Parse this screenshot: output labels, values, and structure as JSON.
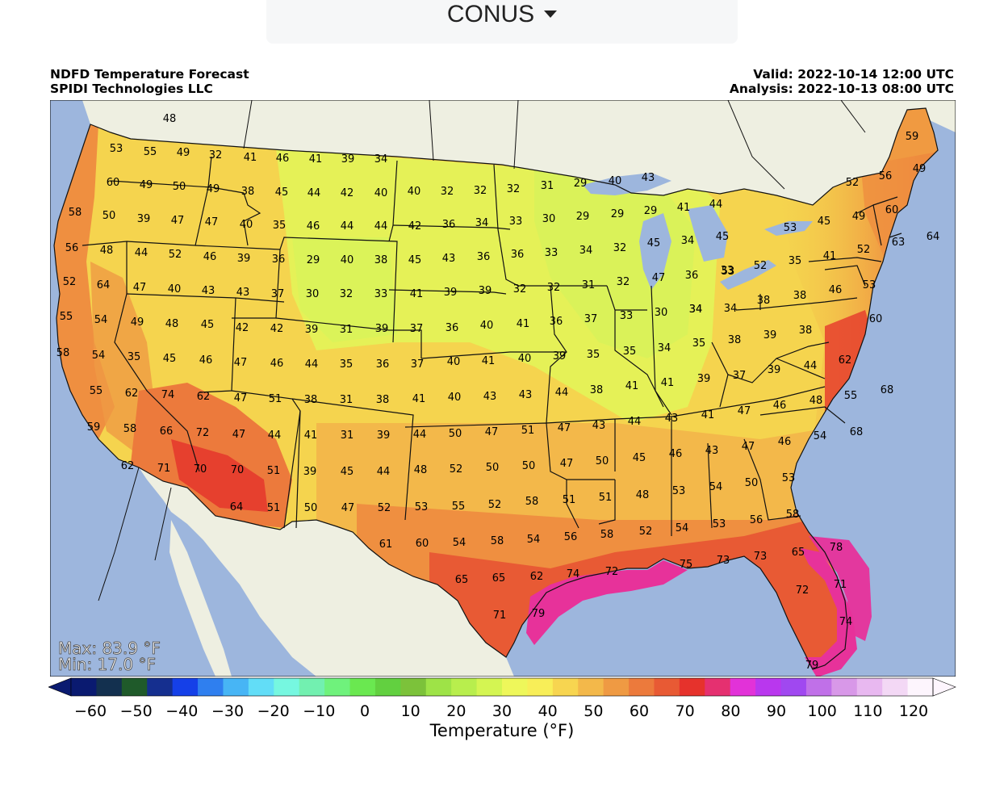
{
  "region_selector": {
    "label": "CONUS"
  },
  "header": {
    "title_line1": "NDFD Temperature Forecast",
    "title_line2": "SPIDI Technologies LLC",
    "valid": "Valid: 2022-10-14 12:00 UTC",
    "analysis": "Analysis: 2022-10-13 08:00 UTC"
  },
  "stats": {
    "max": "Max: 83.9 °F",
    "min": "Min: 17.0 °F"
  },
  "colorbar": {
    "label": "Temperature (°F)",
    "ticks": [
      "−60",
      "−50",
      "−40",
      "−30",
      "−20",
      "−10",
      "0",
      "10",
      "20",
      "30",
      "40",
      "50",
      "60",
      "70",
      "80",
      "90",
      "100",
      "110",
      "120"
    ],
    "colors": [
      "#0a1a70",
      "#13304f",
      "#1f5a2a",
      "#152f8f",
      "#1540e8",
      "#2f7fef",
      "#47b5f5",
      "#62ddf7",
      "#76f7e0",
      "#72f0b0",
      "#6ff27c",
      "#6ae850",
      "#62d040",
      "#7cc23a",
      "#9ee347",
      "#b8ee4d",
      "#d4f552",
      "#eef75a",
      "#f8ee58",
      "#f7d550",
      "#f3b84a",
      "#ef9a43",
      "#ec7a3c",
      "#e85a34",
      "#e6322c",
      "#e53070",
      "#e232d8",
      "#b937ee",
      "#a048f0",
      "#c070e8",
      "#d898e8",
      "#e8b8f0",
      "#f3d8f5",
      "#fdf5fd"
    ]
  },
  "legend_colors": {
    "ocean": "#9db6dd",
    "land_outside": "#eeefe1",
    "lakes": "#9db6dd",
    "cool": "#dff55a",
    "mild": "#f4cf4c",
    "warm": "#ef8f40",
    "hot": "#e6402e",
    "very_hot": "#e7329a"
  },
  "labels": [
    [
      "48",
      148,
      22
    ],
    [
      "53",
      82,
      59
    ],
    [
      "55",
      124,
      63
    ],
    [
      "49",
      165,
      64
    ],
    [
      "32",
      205,
      67
    ],
    [
      "41",
      248,
      70
    ],
    [
      "46",
      288,
      71
    ],
    [
      "41",
      329,
      72
    ],
    [
      "39",
      369,
      72
    ],
    [
      "34",
      410,
      72
    ],
    [
      "60",
      78,
      101
    ],
    [
      "49",
      119,
      104
    ],
    [
      "50",
      160,
      106
    ],
    [
      "49",
      202,
      109
    ],
    [
      "38",
      245,
      112
    ],
    [
      "45",
      287,
      113
    ],
    [
      "44",
      327,
      114
    ],
    [
      "42",
      368,
      114
    ],
    [
      "40",
      410,
      114
    ],
    [
      "40",
      451,
      112
    ],
    [
      "32",
      492,
      112
    ],
    [
      "32",
      533,
      111
    ],
    [
      "32",
      574,
      109
    ],
    [
      "31",
      616,
      105
    ],
    [
      "29",
      657,
      102
    ],
    [
      "40",
      700,
      99
    ],
    [
      "43",
      741,
      95
    ],
    [
      "58",
      31,
      138
    ],
    [
      "50",
      73,
      142
    ],
    [
      "39",
      116,
      146
    ],
    [
      "47",
      158,
      148
    ],
    [
      "47",
      200,
      150
    ],
    [
      "40",
      243,
      153
    ],
    [
      "35",
      284,
      154
    ],
    [
      "46",
      326,
      155
    ],
    [
      "44",
      368,
      155
    ],
    [
      "44",
      410,
      155
    ],
    [
      "42",
      452,
      155
    ],
    [
      "36",
      494,
      153
    ],
    [
      "34",
      535,
      151
    ],
    [
      "33",
      577,
      149
    ],
    [
      "30",
      618,
      146
    ],
    [
      "29",
      660,
      143
    ],
    [
      "29",
      703,
      140
    ],
    [
      "29",
      744,
      136
    ],
    [
      "41",
      785,
      132
    ],
    [
      "44",
      825,
      128
    ],
    [
      "53",
      917,
      157
    ],
    [
      "45",
      959,
      149
    ],
    [
      "49",
      1002,
      143
    ],
    [
      "60",
      1043,
      135
    ],
    [
      "56",
      1035,
      93
    ],
    [
      "52",
      994,
      101
    ],
    [
      "59",
      1068,
      44
    ],
    [
      "49",
      1077,
      84
    ],
    [
      "56",
      27,
      182
    ],
    [
      "48",
      70,
      185
    ],
    [
      "44",
      113,
      188
    ],
    [
      "52",
      155,
      190
    ],
    [
      "46",
      198,
      193
    ],
    [
      "39",
      240,
      195
    ],
    [
      "36",
      283,
      196
    ],
    [
      "29",
      326,
      197
    ],
    [
      "40",
      368,
      197
    ],
    [
      "38",
      410,
      197
    ],
    [
      "45",
      452,
      197
    ],
    [
      "43",
      494,
      195
    ],
    [
      "36",
      537,
      193
    ],
    [
      "36",
      579,
      190
    ],
    [
      "33",
      621,
      188
    ],
    [
      "34",
      664,
      185
    ],
    [
      "32",
      706,
      182
    ],
    [
      "45",
      748,
      176
    ],
    [
      "34",
      790,
      173
    ],
    [
      "45",
      833,
      168
    ],
    [
      "53",
      840,
      211
    ],
    [
      "52",
      880,
      204
    ],
    [
      "35",
      923,
      198
    ],
    [
      "41",
      966,
      192
    ],
    [
      "52",
      1008,
      184
    ],
    [
      "63",
      1051,
      175
    ],
    [
      "64",
      1094,
      168
    ],
    [
      "52",
      24,
      224
    ],
    [
      "64",
      66,
      228
    ],
    [
      "47",
      111,
      231
    ],
    [
      "40",
      154,
      233
    ],
    [
      "43",
      196,
      235
    ],
    [
      "43",
      239,
      237
    ],
    [
      "37",
      282,
      239
    ],
    [
      "30",
      325,
      239
    ],
    [
      "32",
      367,
      239
    ],
    [
      "33",
      410,
      239
    ],
    [
      "41",
      454,
      239
    ],
    [
      "39",
      496,
      237
    ],
    [
      "39",
      539,
      235
    ],
    [
      "32",
      582,
      233
    ],
    [
      "32",
      624,
      231
    ],
    [
      "31",
      667,
      228
    ],
    [
      "32",
      710,
      224
    ],
    [
      "47",
      754,
      219
    ],
    [
      "36",
      795,
      216
    ],
    [
      "33",
      839,
      210
    ],
    [
      "34",
      843,
      257
    ],
    [
      "34",
      800,
      258
    ],
    [
      "38",
      884,
      247
    ],
    [
      "38",
      929,
      241
    ],
    [
      "46",
      973,
      234
    ],
    [
      "53",
      1015,
      228
    ],
    [
      "55",
      20,
      267
    ],
    [
      "54",
      63,
      271
    ],
    [
      "49",
      108,
      274
    ],
    [
      "48",
      151,
      276
    ],
    [
      "45",
      195,
      277
    ],
    [
      "42",
      238,
      281
    ],
    [
      "42",
      281,
      282
    ],
    [
      "39",
      324,
      283
    ],
    [
      "31",
      367,
      283
    ],
    [
      "39",
      411,
      282
    ],
    [
      "37",
      454,
      282
    ],
    [
      "36",
      498,
      281
    ],
    [
      "40",
      541,
      278
    ],
    [
      "41",
      586,
      276
    ],
    [
      "36",
      627,
      273
    ],
    [
      "37",
      670,
      270
    ],
    [
      "33",
      714,
      266
    ],
    [
      "30",
      757,
      262
    ],
    [
      "34",
      800,
      258
    ],
    [
      "38",
      848,
      296
    ],
    [
      "39",
      892,
      290
    ],
    [
      "38",
      936,
      284
    ],
    [
      "60",
      1023,
      270
    ],
    [
      "58",
      16,
      312
    ],
    [
      "54",
      60,
      315
    ],
    [
      "35",
      104,
      317
    ],
    [
      "45",
      148,
      319
    ],
    [
      "46",
      193,
      321
    ],
    [
      "47",
      236,
      324
    ],
    [
      "46",
      281,
      325
    ],
    [
      "44",
      324,
      326
    ],
    [
      "35",
      367,
      326
    ],
    [
      "36",
      412,
      326
    ],
    [
      "37",
      455,
      326
    ],
    [
      "40",
      500,
      323
    ],
    [
      "41",
      543,
      322
    ],
    [
      "40",
      588,
      319
    ],
    [
      "39",
      631,
      316
    ],
    [
      "35",
      673,
      314
    ],
    [
      "35",
      718,
      310
    ],
    [
      "34",
      761,
      306
    ],
    [
      "35",
      804,
      300
    ],
    [
      "39",
      810,
      344
    ],
    [
      "37",
      854,
      340
    ],
    [
      "39",
      897,
      333
    ],
    [
      "44",
      942,
      328
    ],
    [
      "62",
      985,
      321
    ],
    [
      "55",
      57,
      359
    ],
    [
      "62",
      101,
      362
    ],
    [
      "74",
      146,
      364
    ],
    [
      "62",
      190,
      366
    ],
    [
      "47",
      236,
      368
    ],
    [
      "51",
      279,
      369
    ],
    [
      "38",
      323,
      370
    ],
    [
      "31",
      367,
      370
    ],
    [
      "38",
      412,
      370
    ],
    [
      "41",
      457,
      369
    ],
    [
      "40",
      501,
      367
    ],
    [
      "43",
      545,
      366
    ],
    [
      "43",
      589,
      364
    ],
    [
      "44",
      634,
      361
    ],
    [
      "38",
      677,
      358
    ],
    [
      "41",
      721,
      353
    ],
    [
      "41",
      765,
      349
    ],
    [
      "47",
      860,
      384
    ],
    [
      "46",
      904,
      377
    ],
    [
      "48",
      949,
      371
    ],
    [
      "55",
      992,
      365
    ],
    [
      "68",
      1037,
      358
    ],
    [
      "59",
      54,
      404
    ],
    [
      "58",
      99,
      406
    ],
    [
      "66",
      144,
      409
    ],
    [
      "72",
      189,
      411
    ],
    [
      "47",
      234,
      413
    ],
    [
      "44",
      278,
      414
    ],
    [
      "41",
      323,
      414
    ],
    [
      "31",
      368,
      414
    ],
    [
      "39",
      413,
      414
    ],
    [
      "44",
      458,
      413
    ],
    [
      "50",
      502,
      412
    ],
    [
      "47",
      547,
      410
    ],
    [
      "51",
      592,
      408
    ],
    [
      "47",
      637,
      405
    ],
    [
      "43",
      680,
      402
    ],
    [
      "44",
      724,
      397
    ],
    [
      "43",
      770,
      393
    ],
    [
      "41",
      815,
      389
    ],
    [
      "46",
      910,
      422
    ],
    [
      "54",
      954,
      415
    ],
    [
      "68",
      999,
      410
    ],
    [
      "62",
      96,
      452
    ],
    [
      "71",
      141,
      455
    ],
    [
      "70",
      186,
      456
    ],
    [
      "70",
      232,
      457
    ],
    [
      "51",
      277,
      458
    ],
    [
      "39",
      322,
      459
    ],
    [
      "45",
      368,
      459
    ],
    [
      "44",
      413,
      459
    ],
    [
      "48",
      459,
      457
    ],
    [
      "52",
      503,
      456
    ],
    [
      "50",
      548,
      454
    ],
    [
      "50",
      593,
      452
    ],
    [
      "47",
      640,
      449
    ],
    [
      "50",
      684,
      446
    ],
    [
      "45",
      730,
      442
    ],
    [
      "46",
      775,
      437
    ],
    [
      "43",
      820,
      433
    ],
    [
      "47",
      865,
      428
    ],
    [
      "53",
      915,
      467
    ],
    [
      "50",
      869,
      473
    ],
    [
      "54",
      825,
      478
    ],
    [
      "53",
      779,
      483
    ],
    [
      "48",
      734,
      488
    ],
    [
      "51",
      688,
      491
    ],
    [
      "51",
      643,
      494
    ],
    [
      "64",
      231,
      503
    ],
    [
      "51",
      277,
      504
    ],
    [
      "50",
      323,
      504
    ],
    [
      "47",
      369,
      504
    ],
    [
      "52",
      414,
      504
    ],
    [
      "53",
      460,
      503
    ],
    [
      "55",
      506,
      502
    ],
    [
      "52",
      551,
      500
    ],
    [
      "58",
      597,
      496
    ],
    [
      "56",
      645,
      540
    ],
    [
      "58",
      690,
      537
    ],
    [
      "52",
      738,
      533
    ],
    [
      "54",
      783,
      529
    ],
    [
      "53",
      829,
      524
    ],
    [
      "56",
      875,
      519
    ],
    [
      "58",
      920,
      512
    ],
    [
      "61",
      416,
      549
    ],
    [
      "60",
      461,
      548
    ],
    [
      "54",
      507,
      547
    ],
    [
      "58",
      554,
      545
    ],
    [
      "54",
      599,
      543
    ],
    [
      "74",
      648,
      586
    ],
    [
      "72",
      696,
      583
    ],
    [
      "75",
      788,
      574
    ],
    [
      "73",
      834,
      569
    ],
    [
      "73",
      880,
      564
    ],
    [
      "65",
      927,
      559
    ],
    [
      "78",
      974,
      553
    ],
    [
      "65",
      510,
      593
    ],
    [
      "65",
      556,
      591
    ],
    [
      "62",
      603,
      589
    ],
    [
      "72",
      932,
      606
    ],
    [
      "71",
      979,
      599
    ],
    [
      "71",
      557,
      637
    ],
    [
      "79",
      605,
      635
    ],
    [
      "74",
      986,
      645
    ],
    [
      "79",
      944,
      699
    ]
  ]
}
